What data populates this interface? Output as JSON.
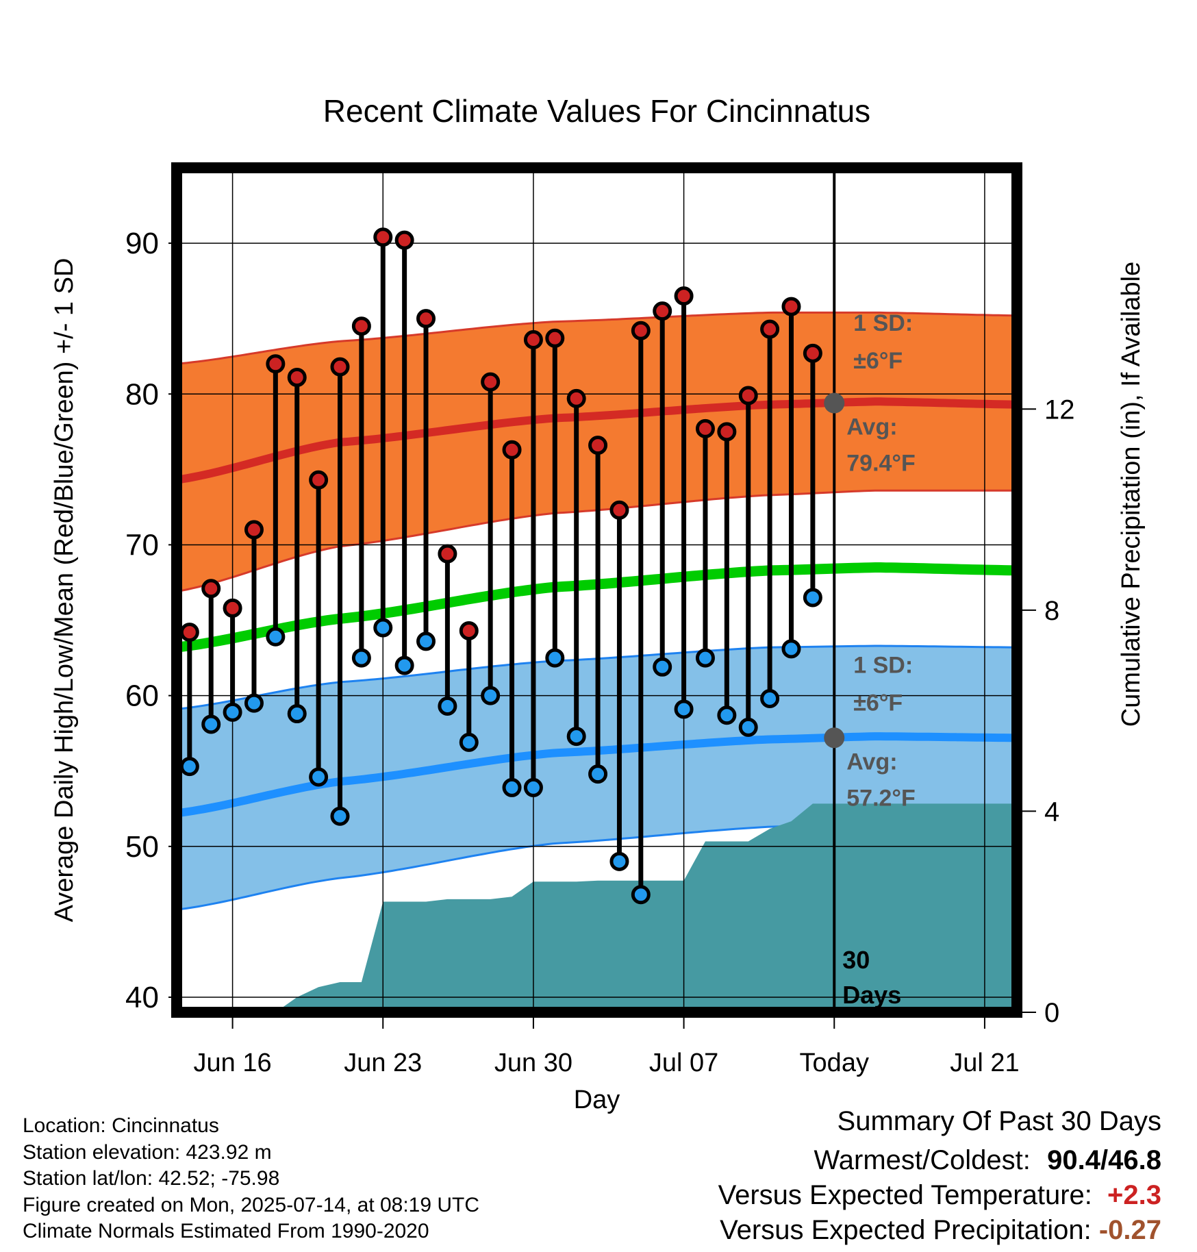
{
  "chart_data": {
    "type": "line",
    "title": "Recent Climate Values For Cincinnatus",
    "xlabel": "Day",
    "ylabel": "Average Daily High/Low/Mean (Red/Blue/Green) +/- 1 SD",
    "y2label": "Cumulative Precipitation (in), If Available",
    "ylim": [
      39,
      95
    ],
    "y2lim": [
      0,
      16.8
    ],
    "yticks": [
      40,
      50,
      60,
      70,
      80,
      90
    ],
    "y2ticks": [
      0,
      4,
      8,
      12
    ],
    "x_start_day": -27.6,
    "x_end_day": 11.5,
    "xtick_days": [
      -25,
      -18,
      -11,
      -4,
      3,
      10
    ],
    "xtick_labels": [
      "Jun 16",
      "Jun 23",
      "Jun 30",
      "Jul 07",
      "Today",
      "Jul 21"
    ],
    "today_day": 3,
    "today_marker_label": "30 Days",
    "daily_high": [
      64.2,
      67.1,
      65.8,
      71.0,
      82.0,
      81.1,
      74.3,
      81.8,
      84.5,
      90.4,
      90.2,
      85.0,
      69.4,
      64.3,
      80.8,
      76.3,
      83.6,
      83.7,
      79.7,
      76.6,
      72.3,
      84.2,
      85.5,
      86.5,
      77.7,
      77.5,
      79.9,
      84.3,
      85.8,
      82.7
    ],
    "daily_low": [
      55.3,
      58.1,
      58.9,
      59.5,
      63.9,
      58.8,
      54.6,
      52.0,
      62.5,
      64.5,
      62.0,
      63.6,
      59.3,
      56.9,
      60.0,
      53.9,
      53.9,
      62.5,
      57.3,
      54.8,
      49.0,
      46.8,
      61.9,
      59.1,
      62.5,
      58.7,
      57.9,
      59.8,
      63.1,
      66.5
    ],
    "normal_high": {
      "x": [
        -27.6,
        -20,
        -10,
        0,
        5,
        11.5
      ],
      "values": [
        74.3,
        76.8,
        78.4,
        79.3,
        79.5,
        79.3
      ]
    },
    "normal_high_sd_upper": {
      "x": [
        -27.6,
        -20,
        -10,
        0,
        5,
        11.5
      ],
      "values": [
        82.0,
        83.5,
        84.8,
        85.4,
        85.4,
        85.2
      ]
    },
    "normal_high_sd_lower": {
      "x": [
        -27.6,
        -20,
        -10,
        0,
        5,
        11.5
      ],
      "values": [
        66.9,
        69.9,
        72.1,
        73.3,
        73.6,
        73.6
      ]
    },
    "normal_mean": {
      "x": [
        -27.6,
        -20,
        -10,
        0,
        5,
        11.5
      ],
      "values": [
        63.2,
        65.1,
        67.2,
        68.3,
        68.5,
        68.3
      ]
    },
    "normal_low": {
      "x": [
        -27.6,
        -20,
        -10,
        0,
        5,
        11.5
      ],
      "values": [
        52.2,
        54.3,
        56.2,
        57.1,
        57.3,
        57.2
      ]
    },
    "normal_low_sd_upper": {
      "x": [
        -27.6,
        -20,
        -10,
        0,
        5,
        11.5
      ],
      "values": [
        59.1,
        60.9,
        62.3,
        63.2,
        63.3,
        63.2
      ]
    },
    "normal_low_sd_lower": {
      "x": [
        -27.6,
        -20,
        -10,
        0,
        5,
        11.5
      ],
      "values": [
        45.8,
        47.9,
        50.2,
        51.3,
        51.6,
        51.7
      ]
    },
    "precip": {
      "x": [
        -23,
        -22,
        -21,
        -20,
        -19,
        -18,
        -17,
        -16,
        -15,
        -14,
        -13,
        -12,
        -11,
        -10,
        -9,
        -8,
        -7,
        -6,
        -5,
        -4,
        -3,
        -2,
        -1,
        0,
        1,
        2,
        3,
        11.5
      ],
      "values": [
        0,
        0.3,
        0.5,
        0.6,
        0.6,
        2.2,
        2.2,
        2.2,
        2.25,
        2.25,
        2.25,
        2.3,
        2.6,
        2.6,
        2.6,
        2.62,
        2.62,
        2.62,
        2.62,
        2.62,
        3.4,
        3.4,
        3.4,
        3.65,
        3.8,
        4.15,
        4.15,
        4.15
      ]
    },
    "annotations": {
      "high_sd_label": [
        "1 SD:",
        "±6°F"
      ],
      "high_avg_label": [
        "Avg:",
        "79.4°F"
      ],
      "high_avg_value": 79.4,
      "low_sd_label": [
        "1 SD:",
        "±6°F"
      ],
      "low_avg_label": [
        "Avg:",
        "57.2°F"
      ],
      "low_avg_value": 57.2
    },
    "colors": {
      "high_band": "#f47a30",
      "high_line": "#d42a24",
      "high_band_edge": "#d63a2a",
      "low_band": "#84c0e8",
      "low_line": "#1e90ff",
      "low_band_edge": "#1e82f0",
      "mean_line": "#00cc00",
      "precip_fill": "#469aa2",
      "high_dot": "#cc2222",
      "low_dot": "#2299ee",
      "avg_marker": "#555555",
      "annotation_text": "#555555"
    },
    "grid": true
  },
  "info": {
    "location": "Location: Cincinnatus",
    "elevation": "Station elevation: 423.92 m",
    "latlon": "Station lat/lon: 42.52; -75.98",
    "created": "Figure created on Mon, 2025-07-14, at 08:19 UTC",
    "normals": "Climate Normals Estimated From 1990-2020"
  },
  "summary": {
    "title": "Summary Of Past 30 Days",
    "warm_cold_label": "Warmest/Coldest:",
    "warmest": "90.4",
    "separator": "/",
    "coldest": "46.8",
    "temp_label": "Versus Expected Temperature:",
    "temp_value": "+2.3",
    "temp_color": "#cc2222",
    "precip_label": "Versus Expected Precipitation:",
    "precip_value": "-0.27",
    "precip_color": "#a0522d"
  }
}
